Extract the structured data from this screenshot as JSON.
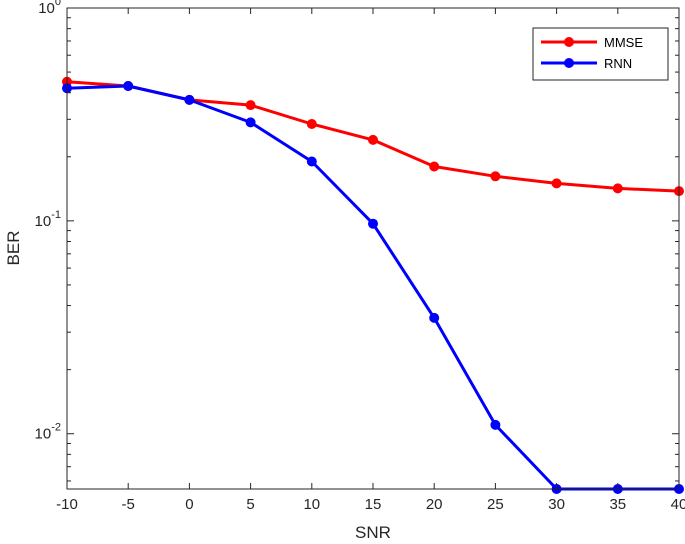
{
  "chart_data": {
    "type": "line",
    "xlabel": "SNR",
    "ylabel": "BER",
    "yscale": "log",
    "xlim": [
      -10,
      40
    ],
    "ylim": [
      0.0055,
      1
    ],
    "x": [
      -10,
      -5,
      0,
      5,
      10,
      15,
      20,
      25,
      30,
      35,
      40
    ],
    "x_tick_labels": [
      "-10",
      "-5",
      "0",
      "5",
      "10",
      "15",
      "20",
      "25",
      "30",
      "35",
      "40"
    ],
    "y_ticks": [
      {
        "value": 1,
        "base": "10",
        "exp": "0"
      },
      {
        "value": 0.1,
        "base": "10",
        "exp": "-1"
      },
      {
        "value": 0.01,
        "base": "10",
        "exp": "-2"
      }
    ],
    "grid": false,
    "legend_position": "top-right",
    "series": [
      {
        "name": "MMSE",
        "color": "#ff0000",
        "values": [
          0.45,
          0.43,
          0.37,
          0.35,
          0.285,
          0.24,
          0.18,
          0.162,
          0.15,
          0.142,
          0.138
        ]
      },
      {
        "name": "RNN",
        "color": "#0000ff",
        "values": [
          0.42,
          0.43,
          0.37,
          0.29,
          0.19,
          0.097,
          0.035,
          0.011,
          0.0055,
          0.0055,
          0.0055
        ]
      }
    ]
  }
}
